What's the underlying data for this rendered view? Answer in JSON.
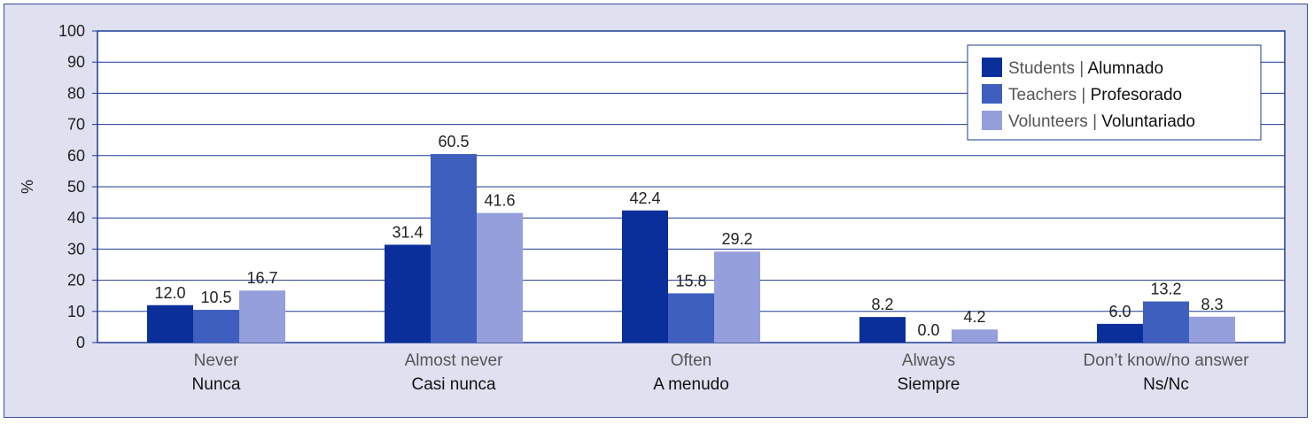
{
  "chart_data": {
    "type": "bar",
    "ylabel": "%",
    "ylim": [
      0,
      100
    ],
    "yticks": [
      0,
      10,
      20,
      30,
      40,
      50,
      60,
      70,
      80,
      90,
      100
    ],
    "grid": true,
    "legend_position": "top-right",
    "categories": [
      {
        "en": "Never",
        "es": "Nunca"
      },
      {
        "en": "Almost never",
        "es": "Casi nunca"
      },
      {
        "en": "Often",
        "es": "A menudo"
      },
      {
        "en": "Always",
        "es": "Siempre"
      },
      {
        "en": "Don’t know/no answer",
        "es": "Ns/Nc"
      }
    ],
    "series": [
      {
        "name_en": "Students",
        "name_es": "Alumnado",
        "color": "#0a2f9b",
        "values": [
          12.0,
          31.4,
          42.4,
          8.2,
          6.0
        ]
      },
      {
        "name_en": "Teachers",
        "name_es": "Profesorado",
        "color": "#3f5fbf",
        "values": [
          10.5,
          60.5,
          15.8,
          0.0,
          13.2
        ]
      },
      {
        "name_en": "Volunteers",
        "name_es": "Voluntariado",
        "color": "#959fdb",
        "values": [
          16.7,
          41.6,
          29.2,
          4.2,
          8.3
        ]
      }
    ]
  }
}
